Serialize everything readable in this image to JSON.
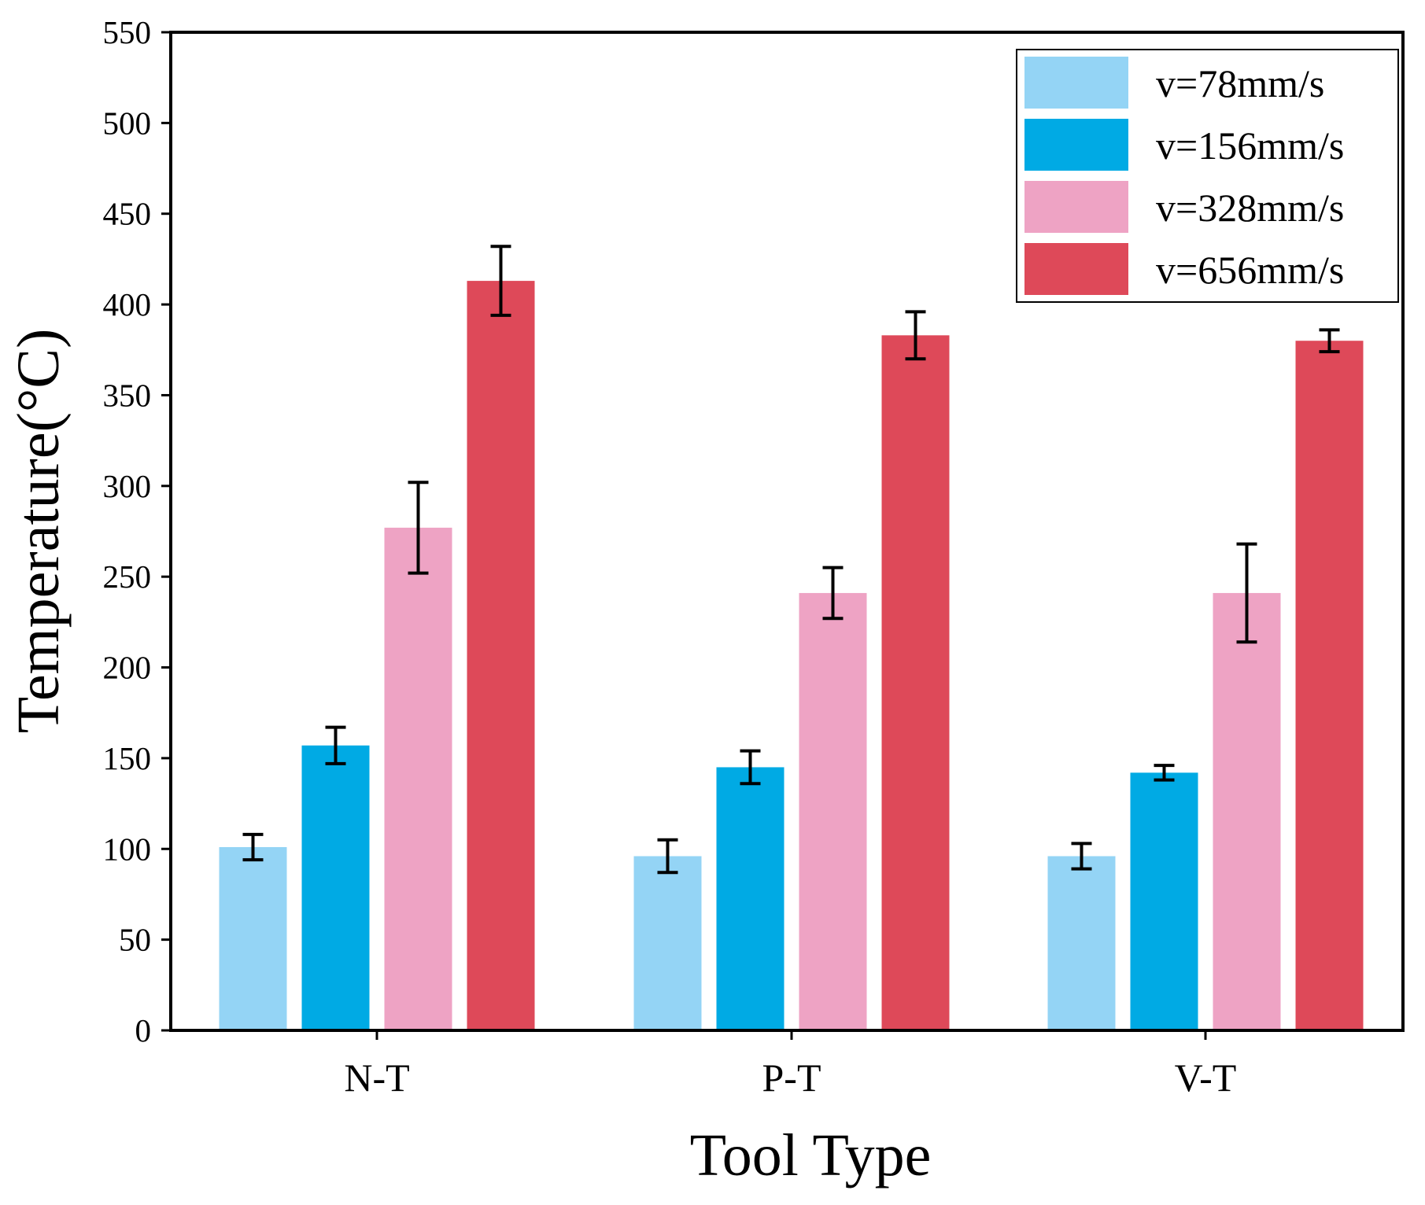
{
  "chart_data": {
    "type": "bar",
    "title": "",
    "xlabel": "Tool Type",
    "ylabel": "Temperature(°C)",
    "ylim": [
      0,
      550
    ],
    "yticks": [
      0,
      50,
      100,
      150,
      200,
      250,
      300,
      350,
      400,
      450,
      500,
      550
    ],
    "ytick_labels": [
      "0",
      "50",
      "100",
      "150",
      "200",
      "250",
      "300",
      "350",
      "400",
      "450",
      "500",
      "550"
    ],
    "categories": [
      "N-T",
      "P-T",
      "V-T"
    ],
    "legend_position": "top-right",
    "grid": false,
    "series": [
      {
        "name": "v=78mm/s",
        "color": "#94d4f5",
        "values": [
          101,
          96,
          96
        ],
        "errors": [
          7,
          9,
          7
        ]
      },
      {
        "name": "v=156mm/s",
        "color": "#00aae4",
        "values": [
          157,
          145,
          142
        ],
        "errors": [
          10,
          9,
          4
        ]
      },
      {
        "name": "v=328mm/s",
        "color": "#eea3c4",
        "values": [
          277,
          241,
          241
        ],
        "errors": [
          25,
          14,
          27
        ]
      },
      {
        "name": "v=656mm/s",
        "color": "#de4959",
        "values": [
          413,
          383,
          380
        ],
        "errors": [
          19,
          13,
          6
        ]
      }
    ],
    "error_bar_color": "#000000"
  }
}
